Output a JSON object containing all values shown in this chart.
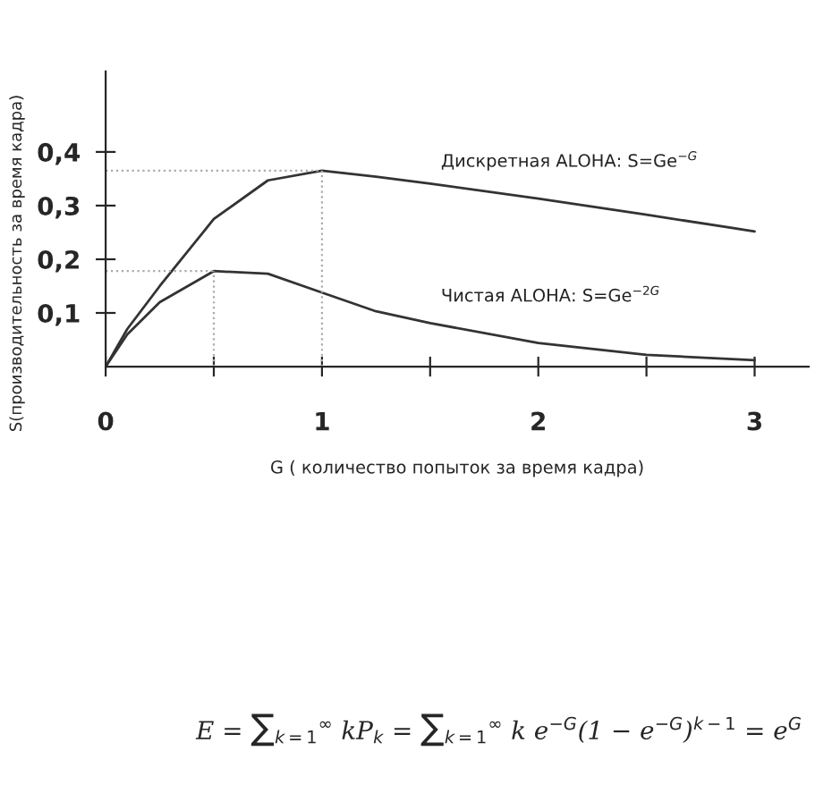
{
  "chart_data": {
    "type": "line",
    "xlabel": "G ( количество попыток за время кадра)",
    "ylabel": "S(производительность за время кадра)",
    "xlim": [
      0,
      3.25
    ],
    "ylim": [
      0,
      0.55
    ],
    "xticks": [
      {
        "value": 0,
        "label": "0"
      },
      {
        "value": 0.5,
        "label": null
      },
      1,
      {
        "value": 1.5,
        "label": null
      },
      2,
      {
        "value": 2.5,
        "label": null
      },
      3
    ],
    "yticks": [
      {
        "value": 0.1,
        "label": "0,1"
      },
      {
        "value": 0.2,
        "label": "0,2"
      },
      {
        "value": 0.3,
        "label": "0,3"
      },
      {
        "value": 0.4,
        "label": "0,4"
      }
    ],
    "x": [
      0,
      0.1,
      0.25,
      0.5,
      0.75,
      1,
      1.25,
      1.5,
      2,
      2.5,
      3
    ],
    "series": [
      {
        "name": "Дискретная ALOHA: S=Ge$^{−G}$",
        "color": "#333333",
        "values": [
          0,
          0.07,
          0.15,
          0.275,
          0.347,
          0.365,
          0.354,
          0.341,
          0.313,
          0.283,
          0.252
        ]
      },
      {
        "name": "Чистая ALOHA: S=Ge$^{−2G}$",
        "color": "#333333",
        "values": [
          0,
          0.06,
          0.12,
          0.178,
          0.173,
          0.138,
          0.103,
          0.081,
          0.044,
          0.022,
          0.012
        ]
      }
    ],
    "ref_lines": [
      {
        "axis": "y",
        "value": 0.365,
        "color": "#aaaaaa",
        "line_style": "dotted"
      },
      {
        "axis": "y",
        "value": 0.178,
        "color": "#aaaaaa",
        "line_style": "dotted"
      },
      {
        "axis": "x",
        "value": 1,
        "color": "#aaaaaa",
        "line_style": "dotted"
      },
      {
        "axis": "x",
        "value": 0.5,
        "color": "#aaaaaa",
        "line_style": "dotted"
      }
    ],
    "annotations": [
      "E = ∑$_{k=1}$$^{∞}$ kP$_{k}$ = ∑$_{k=1}$$^{∞}$ k e$^{−G}$(1 − e$^{−G}$)$^{k−1}$ = e$^{G}$"
    ],
    "grid": false,
    "legend": false,
    "marker": "none",
    "line_style": "solid"
  }
}
